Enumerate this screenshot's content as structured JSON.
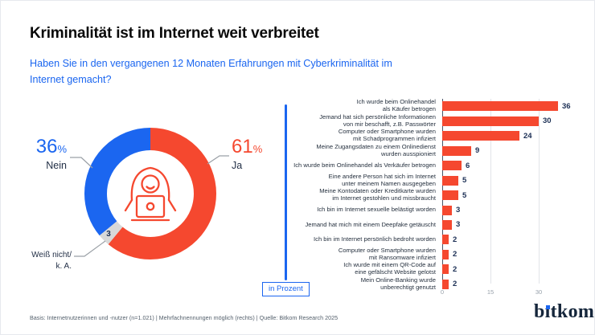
{
  "header": {
    "title": "Kriminalität ist im Internet weit verbreitet",
    "subtitle": "Haben Sie in den vergangenen 12 Monaten Erfahrungen mit Cyberkriminalität im\nInternet gemacht?"
  },
  "colors": {
    "red": "#f5482f",
    "blue": "#1b66f0",
    "gray": "#d8d8d8",
    "navy": "#1c2f55"
  },
  "chart_data": [
    {
      "type": "pie",
      "donut": true,
      "unit": "%",
      "center_icon": "hacker-with-laptop-icon",
      "slices": [
        {
          "label": "Ja",
          "value": 61,
          "color": "#f5482f"
        },
        {
          "label": "Weiß nicht/\nk. A.",
          "value": 3,
          "color": "#d8d8d8"
        },
        {
          "label": "Nein",
          "value": 36,
          "color": "#1b66f0"
        }
      ]
    },
    {
      "type": "bar",
      "orientation": "horizontal",
      "xlabel": "in Prozent",
      "xticks": [
        0,
        15,
        30
      ],
      "xlim": [
        0,
        45
      ],
      "grid": true,
      "bar_color": "#f5482f",
      "categories": [
        "Ich wurde beim Onlinehandel\nals Käufer betrogen",
        "Jemand hat sich persönliche Informationen\nvon mir beschafft, z.B. Passwörter",
        "Computer oder Smartphone wurden\nmit Schadprogrammen infiziert",
        "Meine Zugangsdaten zu einem Onlinedienst\nwurden ausspioniert",
        "Ich wurde beim Onlinehandel als Verkäufer betrogen",
        "Eine andere Person hat sich im Internet\nunter meinem Namen ausgegeben",
        "Meine Kontodaten oder Kreditkarte wurden\nim Internet gestohlen und missbraucht",
        "Ich bin im Internet sexuelle belästigt worden",
        "Jemand hat mich mit einem Deepfake getäuscht",
        "Ich bin im Internet persönlich bedroht worden",
        "Computer oder Smartphone wurden\nmit Ransomware infiziert",
        "Ich wurde mit einem QR-Code auf\neine gefälscht Website gelotst",
        "Mein Online-Banking wurde\nunberechtigt genutzt"
      ],
      "values": [
        36,
        30,
        24,
        9,
        6,
        5,
        5,
        3,
        3,
        2,
        2,
        2,
        2
      ]
    }
  ],
  "footer": {
    "note": "Basis: Internetnutzerinnen und -nutzer (n=1.021) | Mehrfachnennungen möglich (rechts) | Quelle: Bitkom Research 2025",
    "logo": "bitkom",
    "logo_parts": {
      "b": "b",
      "i": "ı",
      "rest": "tkom"
    }
  }
}
